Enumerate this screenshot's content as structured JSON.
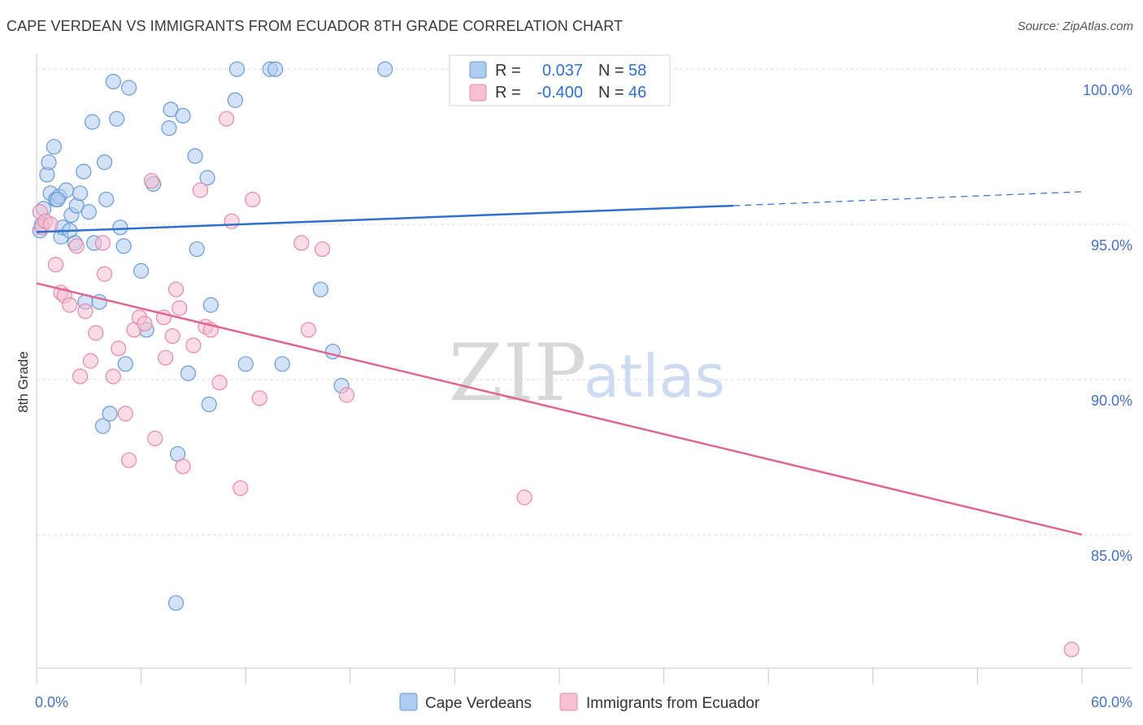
{
  "title": "CAPE VERDEAN VS IMMIGRANTS FROM ECUADOR 8TH GRADE CORRELATION CHART",
  "source": "Source: ZipAtlas.com",
  "watermark": {
    "zip": "ZIP",
    "atlas": "atlas"
  },
  "legend_box": [
    {
      "r_label": "R =",
      "r_value": "0.037",
      "n_label": "N =",
      "n_value": "58",
      "fill": "#aecbf0",
      "stroke": "#6b9bd8"
    },
    {
      "r_label": "R =",
      "r_value": "-0.400",
      "n_label": "N =",
      "n_value": "46",
      "fill": "#f7c0d2",
      "stroke": "#e58aa8"
    }
  ],
  "bottom_legend": [
    {
      "label": "Cape Verdeans",
      "fill": "#aecbf0",
      "stroke": "#6b9bd8"
    },
    {
      "label": "Immigrants from Ecuador",
      "fill": "#f7c0d2",
      "stroke": "#e58aa8"
    }
  ],
  "colors": {
    "blue_line": "#2f6fcf",
    "pink_line": "#e06690",
    "grid": "#dcdcdc",
    "axis_text": "#4472c4"
  },
  "chart_data": {
    "type": "scatter",
    "title": "CAPE VERDEAN VS IMMIGRANTS FROM ECUADOR 8TH GRADE CORRELATION CHART",
    "xlabel": "",
    "ylabel": "8th Grade",
    "xlim": [
      0,
      60
    ],
    "ylim": [
      80.7,
      100.5
    ],
    "x_tick_labels": [
      {
        "value": 0,
        "label": "0.0%"
      },
      {
        "value": 60,
        "label": "60.0%"
      }
    ],
    "y_tick_labels": [
      {
        "value": 100,
        "label": "100.0%"
      },
      {
        "value": 95,
        "label": "95.0%"
      },
      {
        "value": 90,
        "label": "90.0%"
      },
      {
        "value": 85,
        "label": "85.0%"
      }
    ],
    "x_ticks": [
      0,
      6,
      12,
      18,
      24,
      30,
      36,
      42,
      48,
      54,
      60
    ],
    "grid": true,
    "legend_position": "top-center",
    "series": [
      {
        "name": "Cape Verdeans",
        "R": 0.037,
        "N": 58,
        "trend": {
          "x0": 0,
          "y0": 94.75,
          "x1": 40,
          "y1": 95.6,
          "dashed_to_x": 60,
          "dashed_to_y": 96.05
        },
        "points": [
          [
            0.2,
            94.8
          ],
          [
            0.4,
            95.5
          ],
          [
            0.6,
            96.6
          ],
          [
            0.7,
            97.0
          ],
          [
            0.8,
            96.0
          ],
          [
            1.0,
            97.5
          ],
          [
            1.1,
            95.8
          ],
          [
            1.3,
            95.9
          ],
          [
            1.4,
            94.6
          ],
          [
            1.5,
            94.9
          ],
          [
            1.7,
            96.1
          ],
          [
            1.9,
            94.8
          ],
          [
            2.0,
            95.3
          ],
          [
            2.2,
            94.4
          ],
          [
            2.3,
            95.6
          ],
          [
            2.5,
            96.0
          ],
          [
            2.7,
            96.7
          ],
          [
            2.8,
            92.5
          ],
          [
            3.0,
            95.4
          ],
          [
            3.2,
            98.3
          ],
          [
            3.3,
            94.4
          ],
          [
            3.6,
            92.5
          ],
          [
            3.8,
            88.5
          ],
          [
            3.9,
            97.0
          ],
          [
            4.0,
            95.8
          ],
          [
            4.2,
            88.9
          ],
          [
            4.4,
            99.6
          ],
          [
            4.6,
            98.4
          ],
          [
            4.8,
            94.9
          ],
          [
            5.0,
            94.3
          ],
          [
            5.1,
            90.5
          ],
          [
            5.3,
            99.4
          ],
          [
            6.0,
            93.5
          ],
          [
            6.3,
            91.6
          ],
          [
            6.7,
            96.3
          ],
          [
            7.6,
            98.1
          ],
          [
            7.7,
            98.7
          ],
          [
            8.0,
            82.8
          ],
          [
            8.1,
            87.6
          ],
          [
            8.4,
            98.5
          ],
          [
            8.7,
            90.2
          ],
          [
            9.1,
            97.2
          ],
          [
            9.2,
            94.2
          ],
          [
            9.8,
            96.5
          ],
          [
            9.9,
            89.2
          ],
          [
            10.0,
            92.4
          ],
          [
            11.4,
            99.0
          ],
          [
            11.5,
            100.0
          ],
          [
            12.0,
            90.5
          ],
          [
            13.4,
            100.0
          ],
          [
            13.7,
            100.0
          ],
          [
            14.1,
            90.5
          ],
          [
            16.3,
            92.9
          ],
          [
            17.0,
            90.9
          ],
          [
            17.5,
            89.8
          ],
          [
            20.0,
            100.0
          ],
          [
            0.3,
            95.0
          ],
          [
            1.2,
            95.8
          ]
        ]
      },
      {
        "name": "Immigrants from Ecuador",
        "R": -0.4,
        "N": 46,
        "trend": {
          "x0": 0,
          "y0": 93.1,
          "x1": 60,
          "y1": 85.0
        },
        "points": [
          [
            0.2,
            95.4
          ],
          [
            0.3,
            94.9
          ],
          [
            0.5,
            95.1
          ],
          [
            0.8,
            95.0
          ],
          [
            1.1,
            93.7
          ],
          [
            1.4,
            92.8
          ],
          [
            1.6,
            92.7
          ],
          [
            1.9,
            92.4
          ],
          [
            2.3,
            94.3
          ],
          [
            2.5,
            90.1
          ],
          [
            2.8,
            92.2
          ],
          [
            3.1,
            90.6
          ],
          [
            3.4,
            91.5
          ],
          [
            3.8,
            94.4
          ],
          [
            3.9,
            93.4
          ],
          [
            4.4,
            90.1
          ],
          [
            4.7,
            91.0
          ],
          [
            5.1,
            88.9
          ],
          [
            5.3,
            87.4
          ],
          [
            5.6,
            91.6
          ],
          [
            5.9,
            92.0
          ],
          [
            6.2,
            91.8
          ],
          [
            6.6,
            96.4
          ],
          [
            6.8,
            88.1
          ],
          [
            7.3,
            92.0
          ],
          [
            7.4,
            90.7
          ],
          [
            7.8,
            91.4
          ],
          [
            8.0,
            92.9
          ],
          [
            8.2,
            92.3
          ],
          [
            8.4,
            87.2
          ],
          [
            9.0,
            91.1
          ],
          [
            9.4,
            96.1
          ],
          [
            9.7,
            91.7
          ],
          [
            10.0,
            91.6
          ],
          [
            10.5,
            89.9
          ],
          [
            10.9,
            98.4
          ],
          [
            11.2,
            95.1
          ],
          [
            11.7,
            86.5
          ],
          [
            12.4,
            95.8
          ],
          [
            12.8,
            89.4
          ],
          [
            15.2,
            94.4
          ],
          [
            15.6,
            91.6
          ],
          [
            16.4,
            94.2
          ],
          [
            17.8,
            89.5
          ],
          [
            28.0,
            86.2
          ],
          [
            59.4,
            81.3
          ]
        ]
      }
    ]
  }
}
